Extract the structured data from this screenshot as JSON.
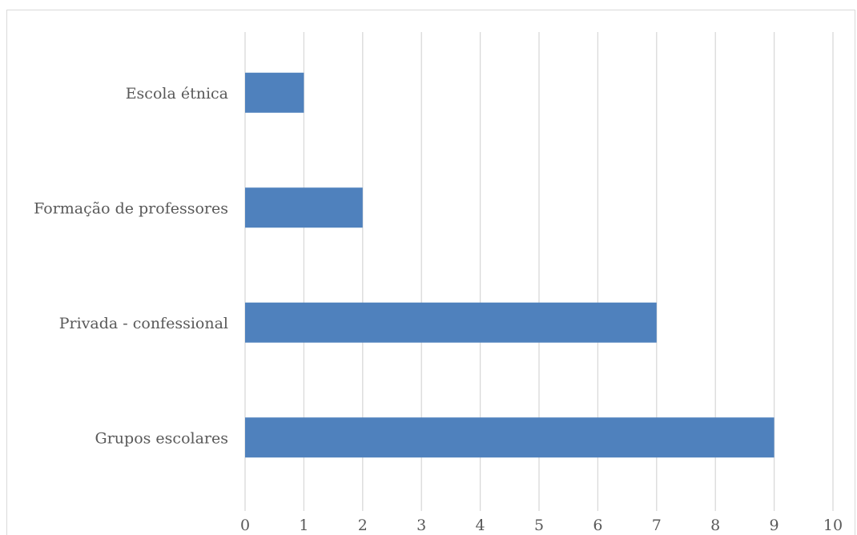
{
  "chart_data": {
    "type": "bar",
    "orientation": "horizontal",
    "categories": [
      "Escola étnica",
      "Formação de professores",
      "Privada - confessional",
      "Grupos escolares"
    ],
    "values": [
      1,
      2,
      7,
      9
    ],
    "x_ticks": [
      "0",
      "1",
      "2",
      "3",
      "4",
      "5",
      "6",
      "7",
      "8",
      "9",
      "10"
    ],
    "xlim": [
      0,
      10
    ],
    "grid": "vertical",
    "legend": "none",
    "title": "",
    "xlabel": "",
    "ylabel": "",
    "bar_color": "#4f81bd",
    "grid_color": "#d9d9d9"
  }
}
